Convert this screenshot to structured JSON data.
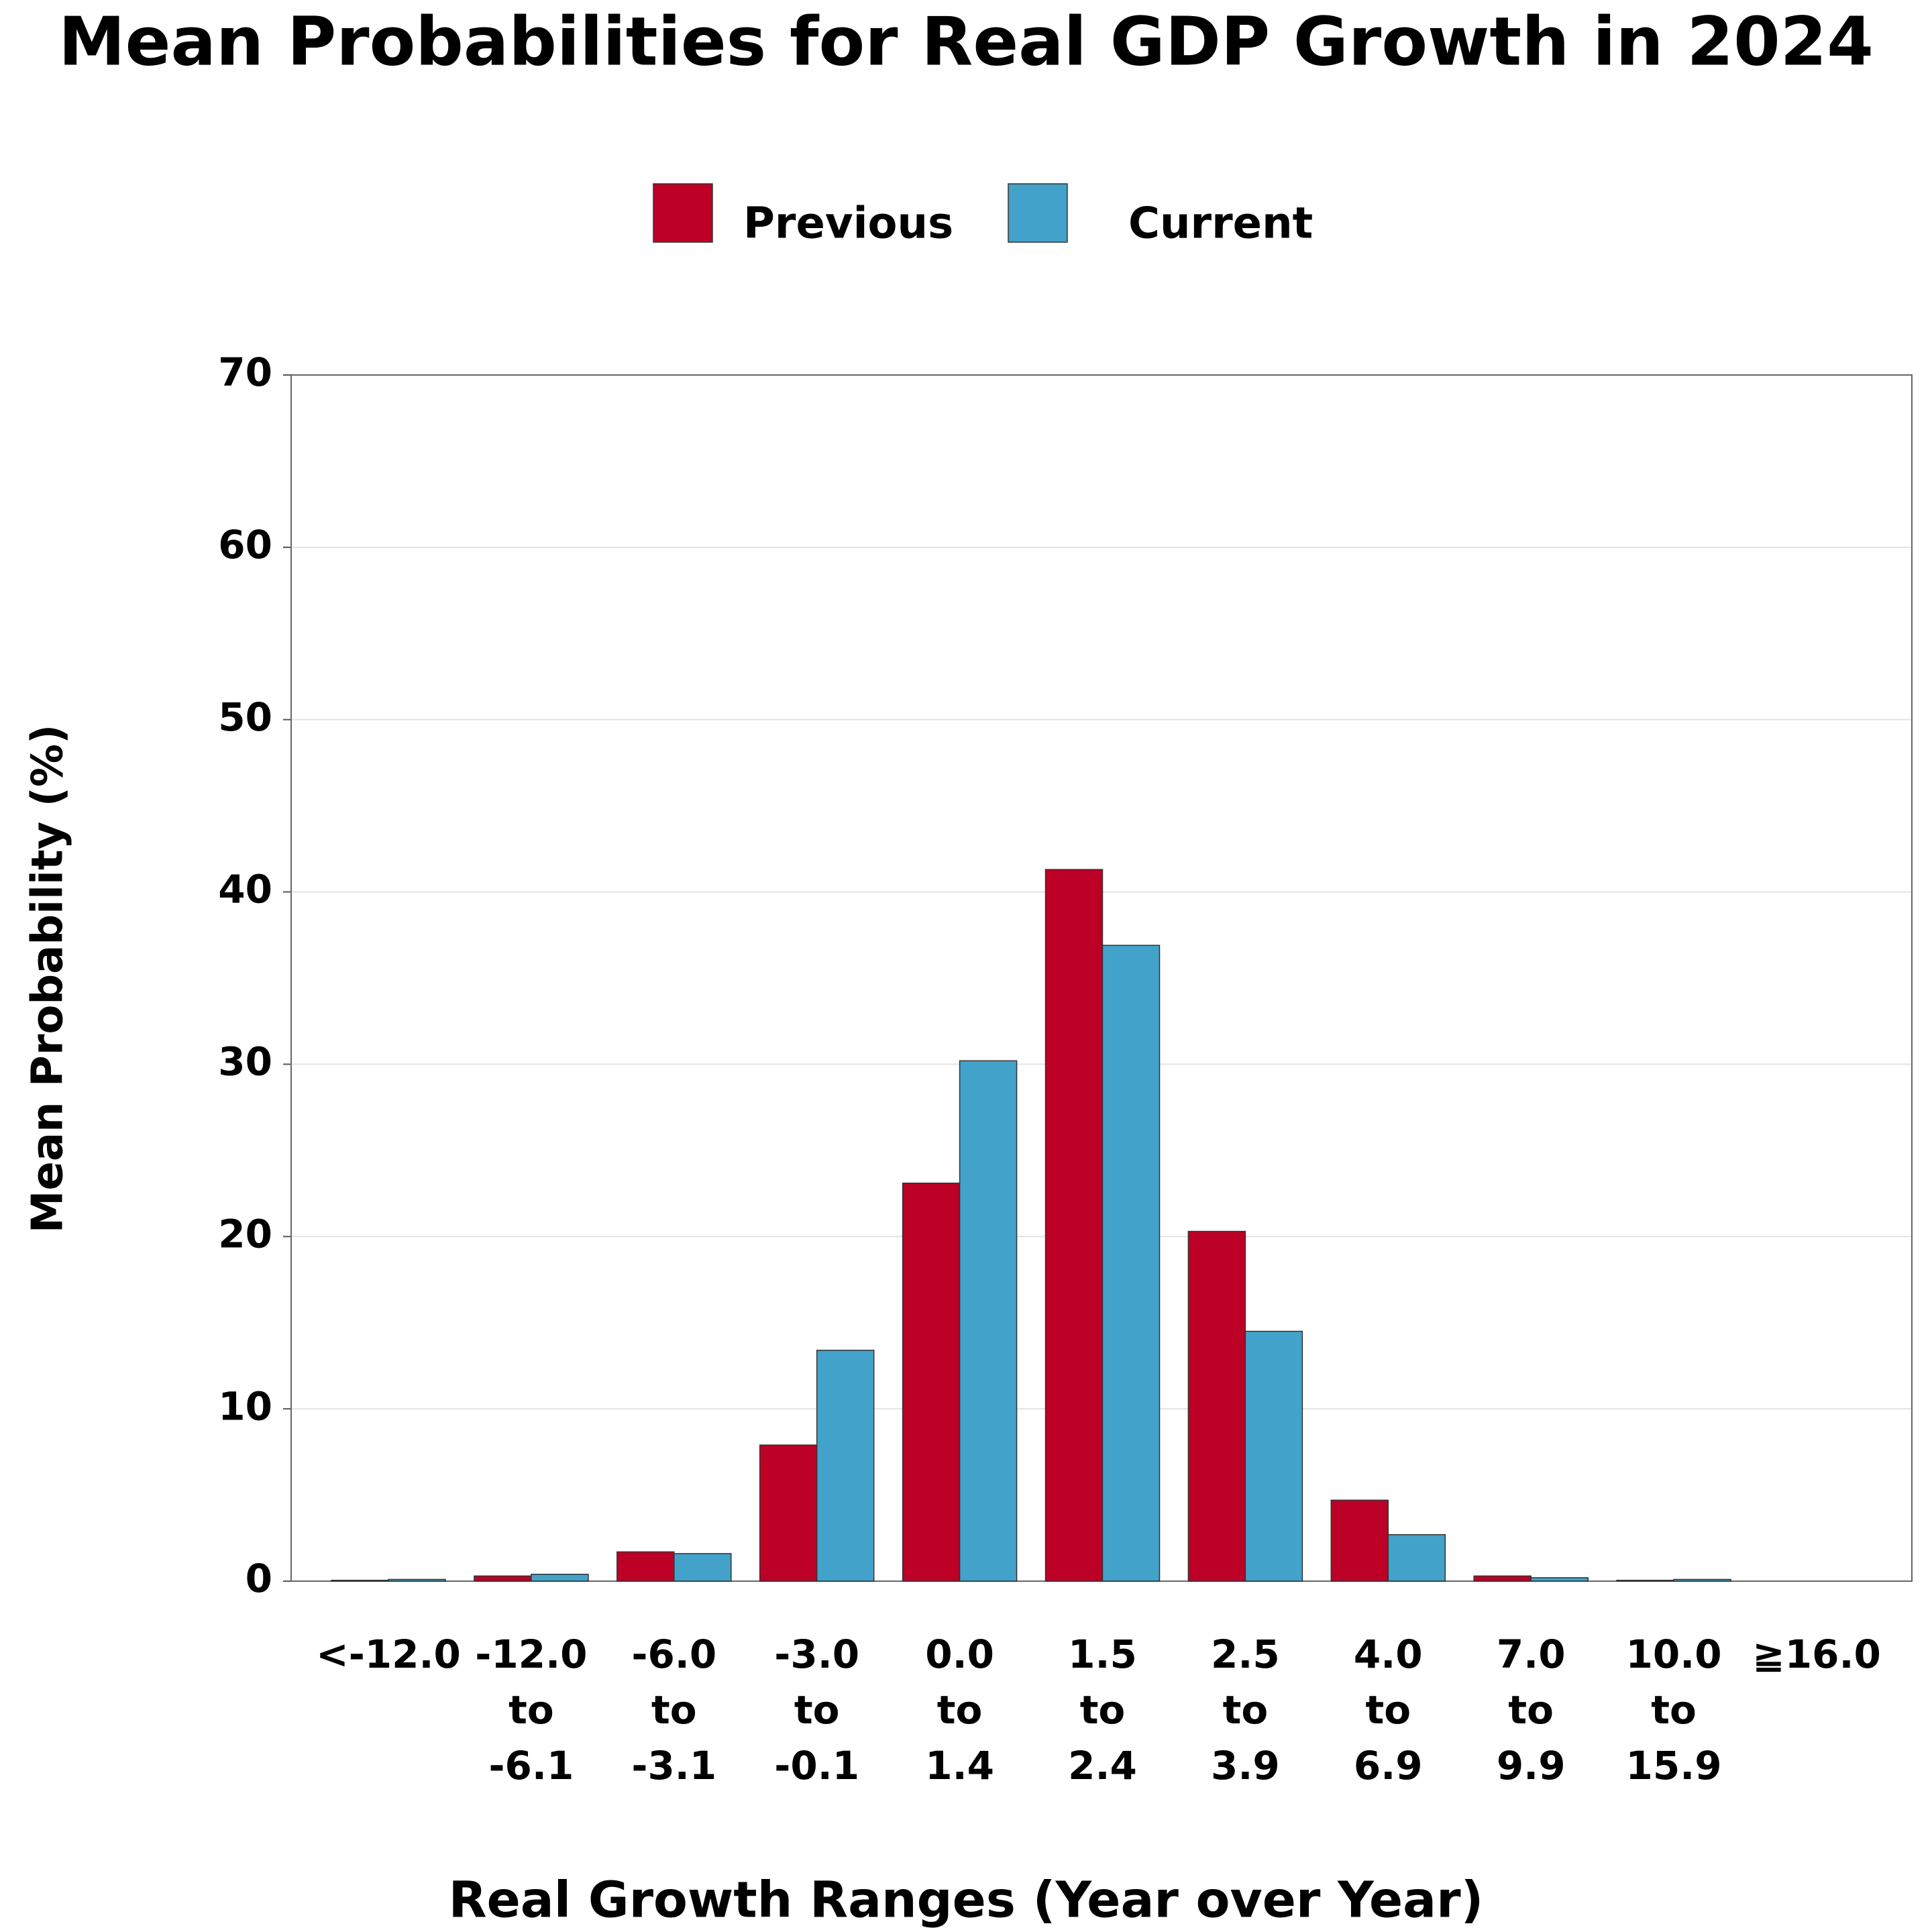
{
  "chart_data": {
    "type": "bar",
    "title": "Mean Probabilities for Real GDP Growth in 2024",
    "x_label": "Real Growth Ranges (Year over Year)",
    "y_label": "Mean Probability (%)",
    "categories": [
      "<-12.0",
      "-12.0 to -6.1",
      "-6.0 to -3.1",
      "-3.0 to -0.1",
      "0.0 to 1.4",
      "1.5 to 2.4",
      "2.5 to 3.9",
      "4.0 to 6.9",
      "7.0 to 9.9",
      "10.0 to 15.9",
      "≧16.0"
    ],
    "series": [
      {
        "name": "Previous",
        "color": "#bd0026",
        "values": [
          0.05,
          0.3,
          1.7,
          7.9,
          23.1,
          41.3,
          20.3,
          4.7,
          0.3,
          0.05,
          0
        ]
      },
      {
        "name": "Current",
        "color": "#43a2ca",
        "values": [
          0.1,
          0.4,
          1.6,
          13.4,
          30.2,
          36.9,
          14.5,
          2.7,
          0.2,
          0.1,
          0
        ]
      }
    ],
    "ylim": [
      0,
      70
    ],
    "yticks": [
      0,
      10,
      20,
      30,
      40,
      50,
      60,
      70
    ],
    "grid": true
  }
}
